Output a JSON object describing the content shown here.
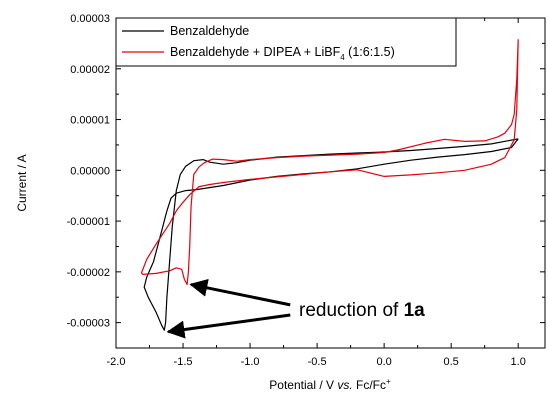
{
  "chart_data": {
    "type": "line",
    "xlabel": "Potential / V vs. Fc/Fc+",
    "xlabel_parts": {
      "main": "Potential / V ",
      "italic": "vs.",
      "ref": " Fc/Fc",
      "sup": "+"
    },
    "ylabel": "Current / A",
    "xlim": [
      -2.0,
      1.2
    ],
    "ylim": [
      -3.5e-05,
      3e-05
    ],
    "xticks": [
      -2.0,
      -1.5,
      -1.0,
      -0.5,
      0.0,
      0.5,
      1.0
    ],
    "xtick_labels": [
      "-2.0",
      "-1.5",
      "-1.0",
      "-0.5",
      "0.0",
      "0.5",
      "1.0"
    ],
    "yticks": [
      3e-05,
      2e-05,
      1e-05,
      0.0,
      -1e-05,
      -2e-05,
      -3e-05
    ],
    "ytick_labels": [
      "0.00003",
      "0.00002",
      "0.00001",
      "0.00000",
      "-0.00001",
      "-0.00002",
      "-0.00003"
    ],
    "grid": false,
    "legend_position": "top-left",
    "series": [
      {
        "name": "Benzaldehyde",
        "color": "#000000",
        "points": [
          [
            1.0,
            6.2e-06
          ],
          [
            0.8,
            5.2e-06
          ],
          [
            0.6,
            4.7e-06
          ],
          [
            0.4,
            4.3e-06
          ],
          [
            0.2,
            3.9e-06
          ],
          [
            0.0,
            3.6e-06
          ],
          [
            -0.2,
            3.4e-06
          ],
          [
            -0.4,
            3.2e-06
          ],
          [
            -0.6,
            2.9e-06
          ],
          [
            -0.8,
            2.6e-06
          ],
          [
            -1.0,
            2e-06
          ],
          [
            -1.1,
            1.5e-06
          ],
          [
            -1.2,
            1.2e-06
          ],
          [
            -1.3,
            1.6e-06
          ],
          [
            -1.35,
            2.1e-06
          ],
          [
            -1.42,
            1.9e-06
          ],
          [
            -1.48,
            8e-07
          ],
          [
            -1.52,
            -8e-07
          ],
          [
            -1.55,
            -4e-06
          ],
          [
            -1.58,
            -1.1e-05
          ],
          [
            -1.6,
            -1.8e-05
          ],
          [
            -1.62,
            -2.5e-05
          ],
          [
            -1.63,
            -3e-05
          ],
          [
            -1.64,
            -3.15e-05
          ],
          [
            -1.66,
            -3.05e-05
          ],
          [
            -1.7,
            -2.8e-05
          ],
          [
            -1.76,
            -2.5e-05
          ],
          [
            -1.79,
            -2.3e-05
          ],
          [
            -1.77,
            -2.1e-05
          ],
          [
            -1.72,
            -1.8e-05
          ],
          [
            -1.66,
            -1.2e-05
          ],
          [
            -1.62,
            -8e-06
          ],
          [
            -1.59,
            -5.5e-06
          ],
          [
            -1.55,
            -4.5e-06
          ],
          [
            -1.48,
            -4e-06
          ],
          [
            -1.4,
            -3.8e-06
          ],
          [
            -1.2,
            -3e-06
          ],
          [
            -1.0,
            -1.9e-06
          ],
          [
            -0.8,
            -1.2e-06
          ],
          [
            -0.6,
            -7e-07
          ],
          [
            -0.4,
            -3e-07
          ],
          [
            -0.2,
            3e-07
          ],
          [
            0.0,
            1.2e-06
          ],
          [
            0.2,
            2e-06
          ],
          [
            0.4,
            2.6e-06
          ],
          [
            0.6,
            3.1e-06
          ],
          [
            0.8,
            3.7e-06
          ],
          [
            0.95,
            4.5e-06
          ],
          [
            1.0,
            6.2e-06
          ]
        ]
      },
      {
        "name": "Benzaldehyde + DIPEA + LiBF4 (1:6:1.5)",
        "legend_parts": {
          "main": "Benzaldehyde + DIPEA + LiBF",
          "sub": "4",
          "tail": " (1:6:1.5)"
        },
        "color": "#e8000b",
        "points": [
          [
            1.0,
            2.58e-05
          ],
          [
            0.99,
            1.8e-05
          ],
          [
            0.97,
            1.1e-05
          ],
          [
            0.95,
            9e-06
          ],
          [
            0.9,
            7.3e-06
          ],
          [
            0.85,
            6.6e-06
          ],
          [
            0.75,
            5.8e-06
          ],
          [
            0.6,
            5.7e-06
          ],
          [
            0.45,
            6.1e-06
          ],
          [
            0.3,
            5.3e-06
          ],
          [
            0.1,
            4e-06
          ],
          [
            0.0,
            3.5e-06
          ],
          [
            -0.2,
            3.2e-06
          ],
          [
            -0.4,
            3e-06
          ],
          [
            -0.6,
            2.8e-06
          ],
          [
            -0.8,
            2.5e-06
          ],
          [
            -1.0,
            2.1e-06
          ],
          [
            -1.1,
            1.8e-06
          ],
          [
            -1.2,
            2.1e-06
          ],
          [
            -1.28,
            2.2e-06
          ],
          [
            -1.34,
            1.5e-06
          ],
          [
            -1.38,
            7e-07
          ],
          [
            -1.42,
            -8e-07
          ],
          [
            -1.44,
            -7e-06
          ],
          [
            -1.45,
            -1.5e-05
          ],
          [
            -1.46,
            -2e-05
          ],
          [
            -1.47,
            -2.25e-05
          ],
          [
            -1.49,
            -2.15e-05
          ],
          [
            -1.51,
            -1.95e-05
          ],
          [
            -1.55,
            -1.92e-05
          ],
          [
            -1.6,
            -1.98e-05
          ],
          [
            -1.7,
            -2.03e-05
          ],
          [
            -1.8,
            -2.05e-05
          ],
          [
            -1.81,
            -2.02e-05
          ],
          [
            -1.77,
            -1.75e-05
          ],
          [
            -1.7,
            -1.45e-05
          ],
          [
            -1.6,
            -1.05e-05
          ],
          [
            -1.55,
            -8e-06
          ],
          [
            -1.5,
            -6.3e-06
          ],
          [
            -1.45,
            -4.8e-06
          ],
          [
            -1.38,
            -3.2e-06
          ],
          [
            -1.3,
            -2.8e-06
          ],
          [
            -1.2,
            -2.4e-06
          ],
          [
            -1.0,
            -1.8e-06
          ],
          [
            -0.8,
            -1.3e-06
          ],
          [
            -0.6,
            -8e-07
          ],
          [
            -0.4,
            -3e-07
          ],
          [
            -0.2,
            1e-07
          ],
          [
            0.0,
            -1.2e-06
          ],
          [
            0.2,
            -9e-07
          ],
          [
            0.4,
            -5e-07
          ],
          [
            0.6,
            0.0
          ],
          [
            0.8,
            1.2e-06
          ],
          [
            0.9,
            2.5e-06
          ],
          [
            0.97,
            6e-06
          ],
          [
            0.99,
            1.2e-05
          ],
          [
            1.0,
            2.58e-05
          ]
        ]
      }
    ],
    "annotation": {
      "text_main": "reduction of ",
      "text_bold": "1a",
      "arrows": [
        {
          "from": [
            -0.7,
            -2.65e-05
          ],
          "to": [
            -1.44,
            -2.25e-05
          ]
        },
        {
          "from": [
            -0.7,
            -2.85e-05
          ],
          "to": [
            -1.61,
            -3.18e-05
          ]
        }
      ]
    }
  }
}
